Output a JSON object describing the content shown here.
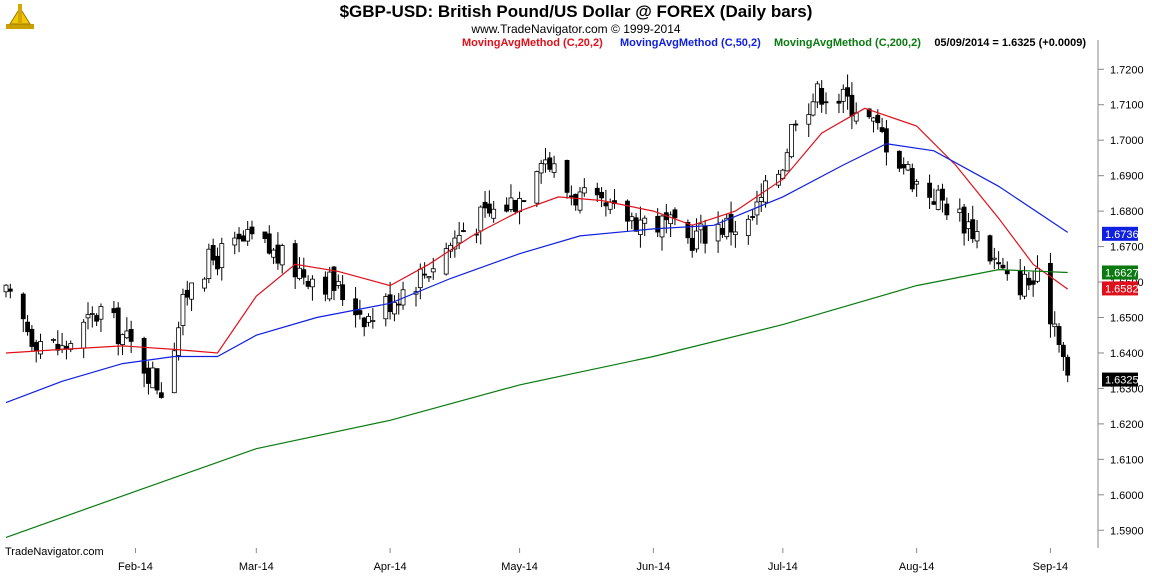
{
  "chart_data": {
    "type": "candlestick",
    "title": "$GBP-USD:  British Pound/US Dollar @ FOREX  (Daily bars)",
    "subtitle": "www.TradeNavigator.com © 1999-2014",
    "footer": "TradeNavigator.com",
    "last_quote": "05/09/2014 = 1.6325 (+0.0009)",
    "ylim": [
      1.585,
      1.726
    ],
    "y_ticks": [
      1.59,
      1.6,
      1.61,
      1.62,
      1.63,
      1.64,
      1.65,
      1.66,
      1.67,
      1.68,
      1.69,
      1.7,
      1.71,
      1.72
    ],
    "x_ticks": [
      {
        "label": "Feb-14",
        "date": "2014-02-01"
      },
      {
        "label": "Mar-14",
        "date": "2014-03-01"
      },
      {
        "label": "Apr-14",
        "date": "2014-04-01"
      },
      {
        "label": "May-14",
        "date": "2014-05-01"
      },
      {
        "label": "Jun-14",
        "date": "2014-06-01"
      },
      {
        "label": "Jul-14",
        "date": "2014-07-01"
      },
      {
        "label": "Aug-14",
        "date": "2014-08-01"
      },
      {
        "label": "Sep-14",
        "date": "2014-09-01"
      }
    ],
    "x_range": [
      "2014-01-02",
      "2014-09-06"
    ],
    "series": [
      {
        "name": "MovingAvgMethod (C,20,2)",
        "color": "#e0101a",
        "points": [
          [
            "2014-01-02",
            1.64
          ],
          [
            "2014-01-15",
            1.641
          ],
          [
            "2014-01-29",
            1.642
          ],
          [
            "2014-02-10",
            1.641
          ],
          [
            "2014-02-20",
            1.64
          ],
          [
            "2014-03-01",
            1.656
          ],
          [
            "2014-03-10",
            1.665
          ],
          [
            "2014-03-20",
            1.663
          ],
          [
            "2014-04-01",
            1.659
          ],
          [
            "2014-04-10",
            1.665
          ],
          [
            "2014-04-20",
            1.673
          ],
          [
            "2014-05-01",
            1.68
          ],
          [
            "2014-05-10",
            1.684
          ],
          [
            "2014-05-20",
            1.683
          ],
          [
            "2014-06-01",
            1.68
          ],
          [
            "2014-06-10",
            1.676
          ],
          [
            "2014-06-20",
            1.68
          ],
          [
            "2014-07-01",
            1.689
          ],
          [
            "2014-07-10",
            1.702
          ],
          [
            "2014-07-20",
            1.709
          ],
          [
            "2014-08-01",
            1.704
          ],
          [
            "2014-08-10",
            1.693
          ],
          [
            "2014-08-20",
            1.678
          ],
          [
            "2014-08-28",
            1.665
          ],
          [
            "2014-09-05",
            1.658
          ]
        ]
      },
      {
        "name": "MovingAvgMethod (C,50,2)",
        "color": "#1020e0",
        "points": [
          [
            "2014-01-02",
            1.626
          ],
          [
            "2014-01-15",
            1.632
          ],
          [
            "2014-01-29",
            1.637
          ],
          [
            "2014-02-10",
            1.639
          ],
          [
            "2014-02-20",
            1.639
          ],
          [
            "2014-03-01",
            1.645
          ],
          [
            "2014-03-15",
            1.65
          ],
          [
            "2014-04-01",
            1.654
          ],
          [
            "2014-04-15",
            1.661
          ],
          [
            "2014-05-01",
            1.668
          ],
          [
            "2014-05-15",
            1.673
          ],
          [
            "2014-06-01",
            1.675
          ],
          [
            "2014-06-15",
            1.676
          ],
          [
            "2014-07-01",
            1.684
          ],
          [
            "2014-07-15",
            1.693
          ],
          [
            "2014-07-25",
            1.699
          ],
          [
            "2014-08-05",
            1.697
          ],
          [
            "2014-08-20",
            1.687
          ],
          [
            "2014-09-05",
            1.674
          ]
        ]
      },
      {
        "name": "MovingAvgMethod (C,200,2)",
        "color": "#0a7a10",
        "points": [
          [
            "2014-01-02",
            1.588
          ],
          [
            "2014-02-01",
            1.601
          ],
          [
            "2014-03-01",
            1.613
          ],
          [
            "2014-04-01",
            1.621
          ],
          [
            "2014-05-01",
            1.631
          ],
          [
            "2014-06-01",
            1.639
          ],
          [
            "2014-07-01",
            1.648
          ],
          [
            "2014-07-15",
            1.653
          ],
          [
            "2014-08-01",
            1.659
          ],
          [
            "2014-08-20",
            1.6635
          ],
          [
            "2014-09-05",
            1.6627
          ]
        ]
      }
    ],
    "close_path": [
      [
        "2014-01-02",
        1.656
      ],
      [
        "2014-01-08",
        1.645
      ],
      [
        "2014-01-15",
        1.641
      ],
      [
        "2014-01-24",
        1.652
      ],
      [
        "2014-01-31",
        1.642
      ],
      [
        "2014-02-07",
        1.63
      ],
      [
        "2014-02-14",
        1.662
      ],
      [
        "2014-02-21",
        1.668
      ],
      [
        "2014-02-28",
        1.672
      ],
      [
        "2014-03-10",
        1.664
      ],
      [
        "2014-03-18",
        1.66
      ],
      [
        "2014-03-27",
        1.65
      ],
      [
        "2014-04-03",
        1.657
      ],
      [
        "2014-04-10",
        1.664
      ],
      [
        "2014-04-18",
        1.675
      ],
      [
        "2014-04-25",
        1.68
      ],
      [
        "2014-05-01",
        1.684
      ],
      [
        "2014-05-06",
        1.697
      ],
      [
        "2014-05-12",
        1.686
      ],
      [
        "2014-05-20",
        1.68
      ],
      [
        "2014-05-28",
        1.678
      ],
      [
        "2014-06-04",
        1.676
      ],
      [
        "2014-06-09",
        1.672
      ],
      [
        "2014-06-16",
        1.676
      ],
      [
        "2014-06-23",
        1.676
      ],
      [
        "2014-07-01",
        1.694
      ],
      [
        "2014-07-04",
        1.708
      ],
      [
        "2014-07-10",
        1.714
      ],
      [
        "2014-07-18",
        1.71
      ],
      [
        "2014-07-25",
        1.7
      ],
      [
        "2014-08-01",
        1.688
      ],
      [
        "2014-08-08",
        1.682
      ],
      [
        "2014-08-15",
        1.674
      ],
      [
        "2014-08-22",
        1.66
      ],
      [
        "2014-08-29",
        1.66
      ],
      [
        "2014-09-03",
        1.646
      ],
      [
        "2014-09-05",
        1.632
      ]
    ],
    "badges": [
      {
        "value": "1.6736",
        "y": 1.6736,
        "color": "#1020e0"
      },
      {
        "value": "1.6627",
        "y": 1.6627,
        "color": "#0a7a10"
      },
      {
        "value": "1.6582",
        "y": 1.6582,
        "color": "#e0101a"
      },
      {
        "value": "1.6325",
        "y": 1.6325,
        "color": "#000000"
      }
    ],
    "grid": false,
    "legend_placement": "top"
  },
  "logo_icon": "navigator-logo-icon"
}
